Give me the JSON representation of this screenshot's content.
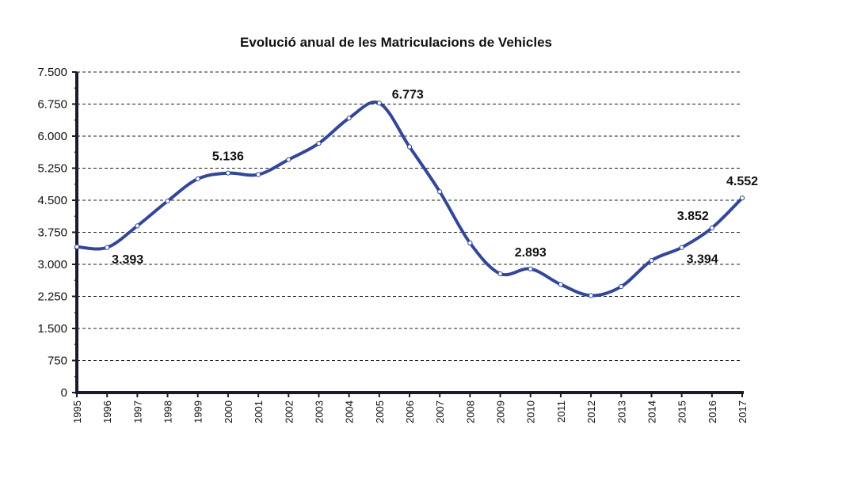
{
  "chart_data": {
    "type": "line",
    "title": "Evolució anual de les Matriculacions de Vehicles",
    "xlabel": "",
    "ylabel": "",
    "ylim": [
      0,
      7500
    ],
    "yticks": [
      {
        "value": 0,
        "label": "0"
      },
      {
        "value": 750,
        "label": "750"
      },
      {
        "value": 1500,
        "label": "1.500"
      },
      {
        "value": 2250,
        "label": "2.250"
      },
      {
        "value": 3000,
        "label": "3.000"
      },
      {
        "value": 3750,
        "label": "3.750"
      },
      {
        "value": 4500,
        "label": "4.500"
      },
      {
        "value": 5250,
        "label": "5.250"
      },
      {
        "value": 6000,
        "label": "6.000"
      },
      {
        "value": 6750,
        "label": "6.750"
      },
      {
        "value": 7500,
        "label": "7.500"
      }
    ],
    "categories": [
      "1995",
      "1996",
      "1997",
      "1998",
      "1999",
      "2000",
      "2001",
      "2002",
      "2003",
      "2004",
      "2005",
      "2006",
      "2007",
      "2008",
      "2009",
      "2010",
      "2011",
      "2012",
      "2013",
      "2014",
      "2015",
      "2016",
      "2017"
    ],
    "series": [
      {
        "values": [
          3410,
          3393,
          3900,
          4480,
          5000,
          5136,
          5100,
          5450,
          5830,
          6420,
          6773,
          5750,
          4700,
          3500,
          2780,
          2893,
          2530,
          2270,
          2480,
          3090,
          3394,
          3852,
          4552
        ]
      }
    ],
    "data_labels": [
      {
        "index": 1,
        "text": "3.393",
        "position": "below"
      },
      {
        "index": 5,
        "text": "5.136",
        "position": "above"
      },
      {
        "index": 10,
        "text": "6.773",
        "position": "right"
      },
      {
        "index": 15,
        "text": "2.893",
        "position": "above"
      },
      {
        "index": 20,
        "text": "3.394",
        "position": "below"
      },
      {
        "index": 21,
        "text": "3.852",
        "position": "above-left"
      },
      {
        "index": 22,
        "text": "4.552",
        "position": "above"
      }
    ],
    "grid": true,
    "grid_style": "dashed",
    "line_color": "#33479a",
    "axis_color": "#1a1a2e"
  }
}
